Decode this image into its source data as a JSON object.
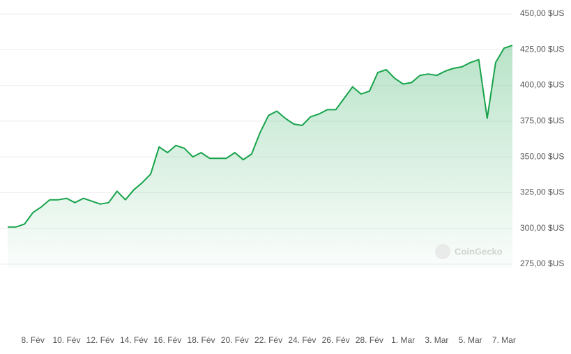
{
  "chart_data": {
    "type": "line",
    "watermark": "CoinGecko",
    "categories": [
      null,
      null,
      null,
      "8. Fév",
      null,
      null,
      null,
      "10. Fév",
      null,
      null,
      null,
      "12. Fév",
      null,
      null,
      null,
      "14. Fév",
      null,
      null,
      null,
      "16. Fév",
      null,
      null,
      null,
      "18. Fév",
      null,
      null,
      null,
      "20. Fév",
      null,
      null,
      null,
      "22. Fév",
      null,
      null,
      null,
      "24. Fév",
      null,
      null,
      null,
      "26. Fév",
      null,
      null,
      null,
      "28. Fév",
      null,
      null,
      null,
      "1. Mar",
      null,
      null,
      null,
      "3. Mar",
      null,
      null,
      null,
      "5. Mar",
      null,
      null,
      null,
      "7. Mar",
      null
    ],
    "values": [
      301,
      301,
      303,
      311,
      315,
      320,
      320,
      321,
      318,
      321,
      319,
      317,
      318,
      326,
      320,
      327,
      332,
      338,
      357,
      353,
      358,
      356,
      350,
      353,
      349,
      349,
      349,
      353,
      348,
      352,
      367,
      379,
      382,
      377,
      373,
      372,
      378,
      380,
      383,
      383,
      391,
      399,
      394,
      396,
      409,
      411,
      405,
      401,
      402,
      407,
      408,
      407,
      410,
      412,
      413,
      416,
      418,
      377,
      416,
      426,
      428
    ],
    "color": "#16a34a",
    "ylim": [
      270,
      452
    ],
    "yticks": [
      {
        "value": 275,
        "label": "275,00 $US"
      },
      {
        "value": 300,
        "label": "300,00 $US"
      },
      {
        "value": 325,
        "label": "325,00 $US"
      },
      {
        "value": 350,
        "label": "350,00 $US"
      },
      {
        "value": 375,
        "label": "375,00 $US"
      },
      {
        "value": 400,
        "label": "400,00 $US"
      },
      {
        "value": 425,
        "label": "425,00 $US"
      },
      {
        "value": 450,
        "label": "450,00 $US"
      }
    ],
    "grid": true
  }
}
